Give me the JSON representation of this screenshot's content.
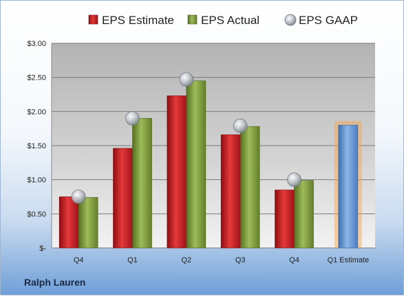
{
  "footer": {
    "company": "Ralph Lauren"
  },
  "colors": {
    "estimate": "#c0161c",
    "actual": "#7a9a36",
    "gaap": "#a8aeb6",
    "forecast": "#5b8fd0",
    "forecast_glow": "#f6a54a"
  },
  "chart_data": {
    "type": "bar",
    "title": "",
    "xlabel": "",
    "ylabel": "",
    "categories": [
      "Q4",
      "Q1",
      "Q2",
      "Q3",
      "Q4",
      "Q1 Estimate"
    ],
    "series": [
      {
        "name": "EPS Estimate",
        "values": [
          0.75,
          1.46,
          2.23,
          1.66,
          0.85,
          1.8
        ]
      },
      {
        "name": "EPS Actual",
        "values": [
          0.74,
          1.9,
          2.45,
          1.78,
          0.99,
          null
        ]
      },
      {
        "name": "EPS GAAP",
        "marker": "circle",
        "values": [
          0.75,
          1.9,
          2.47,
          1.79,
          1.0,
          null
        ]
      }
    ],
    "ylim": [
      0,
      3.0
    ],
    "yticks": [
      "$-",
      "$0.50",
      "$1.00",
      "$1.50",
      "$2.00",
      "$2.50",
      "$3.00"
    ],
    "ytick_values": [
      0,
      0.5,
      1.0,
      1.5,
      2.0,
      2.5,
      3.0
    ],
    "grid": true,
    "legend": "top"
  }
}
